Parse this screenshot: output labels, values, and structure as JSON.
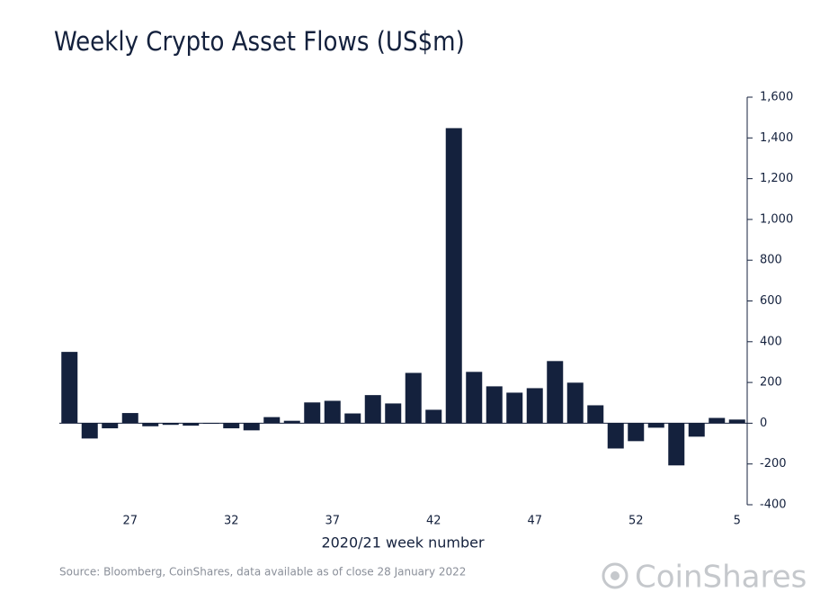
{
  "chart_data": {
    "type": "bar",
    "title": "Weekly Crypto Asset Flows (US$m)",
    "x_label": "2020/21 week number",
    "source": "Source: Bloomberg, CoinShares, data available as of close 28 January 2022",
    "brand": "CoinShares",
    "categories": [
      null,
      null,
      null,
      "27",
      null,
      null,
      null,
      null,
      "32",
      null,
      null,
      null,
      null,
      "37",
      null,
      null,
      null,
      null,
      "42",
      null,
      null,
      null,
      null,
      "47",
      null,
      null,
      null,
      null,
      "52",
      null,
      null,
      null,
      null,
      "5"
    ],
    "values": [
      350,
      -75,
      -25,
      50,
      -15,
      -8,
      -12,
      -3,
      -25,
      -35,
      30,
      12,
      102,
      110,
      48,
      138,
      97,
      247,
      66,
      1448,
      252,
      181,
      150,
      172,
      305,
      199,
      88,
      -124,
      -88,
      -22,
      -207,
      -66,
      26,
      18
    ],
    "color": "#14213d",
    "ylim": [
      -400,
      1600
    ],
    "yticks": [
      -400,
      -200,
      0,
      200,
      400,
      600,
      800,
      {
        "value": 1000,
        "label": "1,000"
      },
      {
        "value": 1200,
        "label": "1,200"
      },
      {
        "value": 1400,
        "label": "1,400"
      },
      {
        "value": 1600,
        "label": "1,600"
      }
    ],
    "y_axis_side": "right",
    "grid": false
  }
}
